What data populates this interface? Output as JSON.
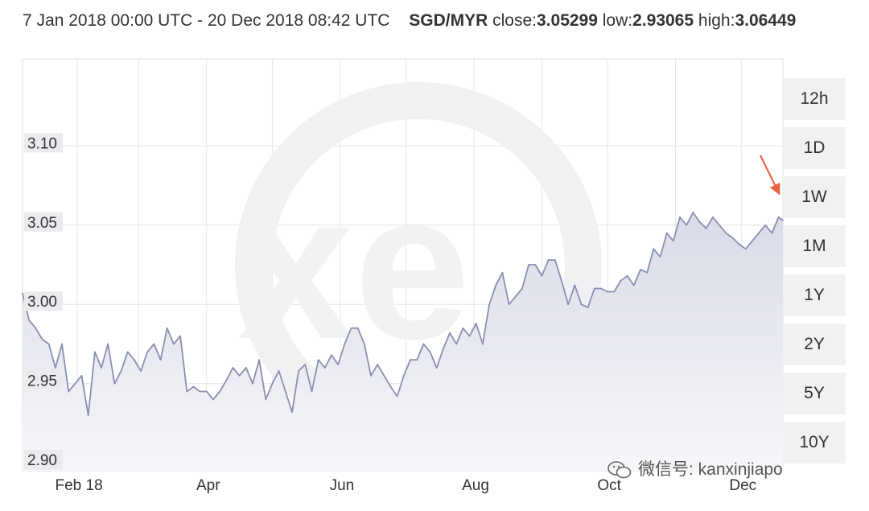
{
  "header": {
    "date_range": "7 Jan 2018 00:00 UTC - 20 Dec 2018 08:42 UTC",
    "pair": "SGD/MYR",
    "close_label": "close:",
    "close_value": "3.05299",
    "low_label": "low:",
    "low_value": "2.93065",
    "high_label": "high:",
    "high_value": "3.06449"
  },
  "range_buttons": [
    "12h",
    "1D",
    "1W",
    "1M",
    "1Y",
    "2Y",
    "5Y",
    "10Y"
  ],
  "watermark": {
    "text": "微信号: kanxinjiapo",
    "icon": "wechat-icon",
    "logo_text": "xe"
  },
  "colors": {
    "line": "#8a8fb0",
    "area": "#e6e7ef",
    "arrow": "#e8603c",
    "grid": "#e0e0e0",
    "button_bg": "#f1f1f3"
  },
  "chart_data": {
    "type": "area",
    "title": "",
    "xlabel": "",
    "ylabel": "",
    "ylim": [
      2.895,
      3.155
    ],
    "xlim": [
      "2018-01-07",
      "2018-12-20"
    ],
    "y_ticks": [
      2.9,
      2.95,
      3.0,
      3.05,
      3.1
    ],
    "y_tick_labels": [
      "2.90",
      "2.95",
      "3.00",
      "3.05",
      "3.10"
    ],
    "x_ticks": [
      "2018-02-01",
      "2018-04-01",
      "2018-06-01",
      "2018-08-01",
      "2018-10-01",
      "2018-12-01"
    ],
    "x_tick_labels": [
      "Feb 18",
      "Apr",
      "Jun",
      "Aug",
      "Oct",
      "Dec"
    ],
    "grid": true,
    "annotation": "arrow pointing to late-December high",
    "series": [
      {
        "x": [
          "2018-01-07",
          "2018-01-10",
          "2018-01-13",
          "2018-01-16",
          "2018-01-19",
          "2018-01-22",
          "2018-01-25",
          "2018-01-28",
          "2018-01-31",
          "2018-02-03",
          "2018-02-06",
          "2018-02-09",
          "2018-02-12",
          "2018-02-15",
          "2018-02-18",
          "2018-02-21",
          "2018-02-24",
          "2018-02-27",
          "2018-03-02",
          "2018-03-05",
          "2018-03-08",
          "2018-03-11",
          "2018-03-14",
          "2018-03-17",
          "2018-03-20",
          "2018-03-23",
          "2018-03-26",
          "2018-03-29",
          "2018-04-01",
          "2018-04-04",
          "2018-04-07",
          "2018-04-10",
          "2018-04-13",
          "2018-04-16",
          "2018-04-19",
          "2018-04-22",
          "2018-04-25",
          "2018-04-28",
          "2018-05-01",
          "2018-05-04",
          "2018-05-07",
          "2018-05-10",
          "2018-05-13",
          "2018-05-16",
          "2018-05-19",
          "2018-05-22",
          "2018-05-25",
          "2018-05-28",
          "2018-05-31",
          "2018-06-03",
          "2018-06-06",
          "2018-06-09",
          "2018-06-12",
          "2018-06-15",
          "2018-06-18",
          "2018-06-21",
          "2018-06-24",
          "2018-06-27",
          "2018-06-30",
          "2018-07-03",
          "2018-07-06",
          "2018-07-09",
          "2018-07-12",
          "2018-07-15",
          "2018-07-18",
          "2018-07-21",
          "2018-07-24",
          "2018-07-27",
          "2018-07-30",
          "2018-08-02",
          "2018-08-05",
          "2018-08-08",
          "2018-08-11",
          "2018-08-14",
          "2018-08-17",
          "2018-08-20",
          "2018-08-23",
          "2018-08-26",
          "2018-08-29",
          "2018-09-01",
          "2018-09-04",
          "2018-09-07",
          "2018-09-10",
          "2018-09-13",
          "2018-09-16",
          "2018-09-19",
          "2018-09-22",
          "2018-09-25",
          "2018-09-28",
          "2018-10-01",
          "2018-10-04",
          "2018-10-07",
          "2018-10-10",
          "2018-10-13",
          "2018-10-16",
          "2018-10-19",
          "2018-10-22",
          "2018-10-25",
          "2018-10-28",
          "2018-10-31",
          "2018-11-03",
          "2018-11-06",
          "2018-11-09",
          "2018-11-12",
          "2018-11-15",
          "2018-11-18",
          "2018-11-21",
          "2018-11-24",
          "2018-11-27",
          "2018-11-30",
          "2018-12-03",
          "2018-12-06",
          "2018-12-09",
          "2018-12-12",
          "2018-12-15",
          "2018-12-18",
          "2018-12-20"
        ],
        "values": [
          3.007,
          2.99,
          2.985,
          2.978,
          2.975,
          2.96,
          2.975,
          2.945,
          2.95,
          2.955,
          2.93,
          2.97,
          2.96,
          2.975,
          2.95,
          2.958,
          2.97,
          2.965,
          2.958,
          2.97,
          2.975,
          2.965,
          2.985,
          2.975,
          2.98,
          2.945,
          2.948,
          2.945,
          2.945,
          2.94,
          2.945,
          2.952,
          2.96,
          2.955,
          2.96,
          2.95,
          2.965,
          2.94,
          2.95,
          2.958,
          2.945,
          2.932,
          2.958,
          2.962,
          2.945,
          2.965,
          2.96,
          2.968,
          2.962,
          2.975,
          2.985,
          2.985,
          2.975,
          2.955,
          2.962,
          2.955,
          2.948,
          2.942,
          2.955,
          2.965,
          2.965,
          2.975,
          2.97,
          2.96,
          2.972,
          2.982,
          2.975,
          2.985,
          2.98,
          2.988,
          2.975,
          3.0,
          3.012,
          3.02,
          3.0,
          3.005,
          3.01,
          3.025,
          3.025,
          3.018,
          3.028,
          3.028,
          3.015,
          3.0,
          3.012,
          3.0,
          2.998,
          3.01,
          3.01,
          3.008,
          3.008,
          3.015,
          3.018,
          3.012,
          3.022,
          3.02,
          3.035,
          3.03,
          3.045,
          3.04,
          3.055,
          3.05,
          3.058,
          3.052,
          3.048,
          3.055,
          3.05,
          3.045,
          3.042,
          3.038,
          3.035,
          3.04,
          3.045,
          3.05,
          3.045,
          3.055,
          3.053
        ]
      }
    ]
  }
}
